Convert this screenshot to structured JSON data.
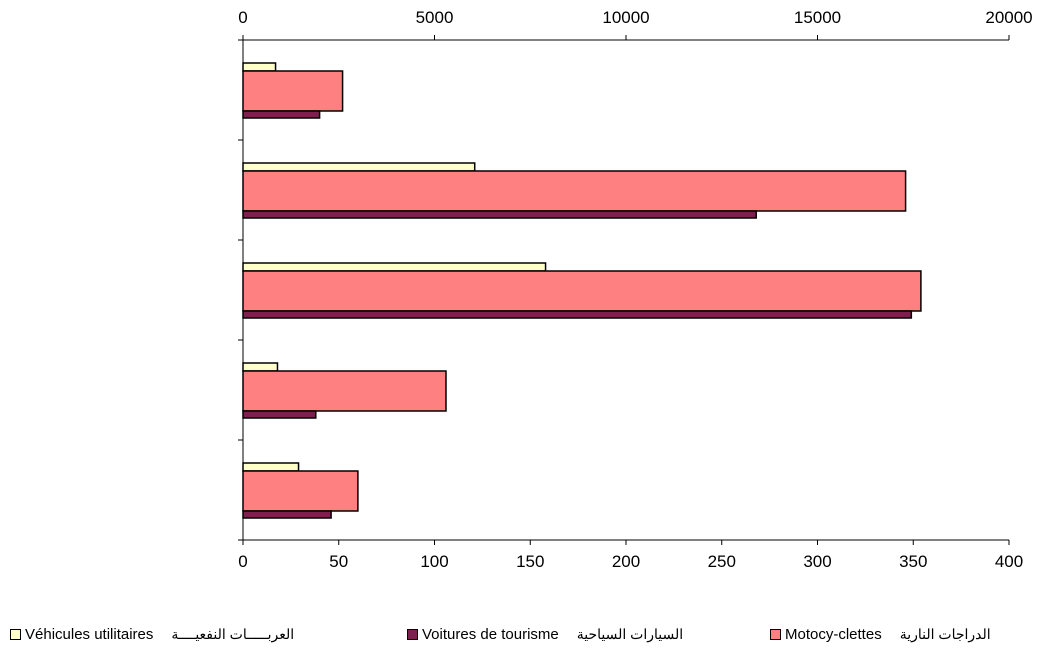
{
  "chart_data": {
    "type": "bar",
    "orientation": "horizontal",
    "categories": [
      "",
      "",
      "",
      "",
      ""
    ],
    "series": [
      {
        "name": "Motocy-clettes",
        "name_ar": "الدراجات النارية",
        "axis": "top",
        "values": [
          2600,
          17300,
          17700,
          5300,
          3000
        ],
        "color": "#ff8080"
      },
      {
        "name": "Voitures de tourisme",
        "name_ar": "السيارات السياحية",
        "axis": "bottom",
        "values": [
          40,
          268,
          349,
          38,
          46
        ],
        "color": "#7f1f4f"
      },
      {
        "name": "Véhicules utilitaires",
        "name_ar": "العربـــــات النفعيــــة",
        "axis": "bottom",
        "values": [
          17,
          121,
          158,
          18,
          29
        ],
        "color": "#ffffcc"
      }
    ],
    "x_axis_top": {
      "range": [
        0,
        20000
      ],
      "ticks": [
        0,
        5000,
        10000,
        15000,
        20000
      ]
    },
    "x_axis_bottom": {
      "range": [
        0,
        400
      ],
      "ticks": [
        0,
        50,
        100,
        150,
        200,
        250,
        300,
        350,
        400
      ]
    },
    "grid": false,
    "legend_position": "bottom"
  }
}
